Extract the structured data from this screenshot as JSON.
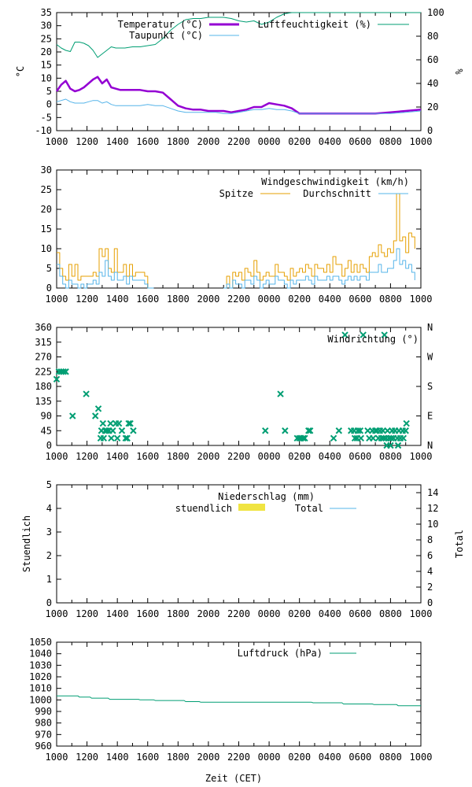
{
  "x_ticks": [
    "1000",
    "1200",
    "1400",
    "1600",
    "1800",
    "2000",
    "2200",
    "0000",
    "0200",
    "0400",
    "0600",
    "0800",
    "1000"
  ],
  "x_axis_label": "Zeit (CET)",
  "colors": {
    "temperature": "#9400d3",
    "dewpoint": "#56b4e9",
    "humidity": "#009e73",
    "gust": "#e69f00",
    "average": "#56b4e9",
    "direction": "#009e73",
    "rain_hourly": "#f0e442",
    "rain_total": "#56b4e9",
    "pressure": "#009e73"
  },
  "chart_data": [
    {
      "type": "line",
      "id": "temperature",
      "ylabel": "°C",
      "y2label": "%",
      "ylim": [
        -10,
        35
      ],
      "y2lim": [
        0,
        100
      ],
      "yticks": [
        "-10",
        "-5",
        "0",
        "5",
        "10",
        "15",
        "20",
        "25",
        "30",
        "35"
      ],
      "y2ticks": [
        "0",
        "20",
        "40",
        "60",
        "80",
        "100"
      ],
      "grid": false,
      "legend_position": "top-right",
      "x_hours": [
        0,
        0.3,
        0.6,
        0.9,
        1.2,
        1.5,
        1.8,
        2.1,
        2.4,
        2.7,
        3.0,
        3.3,
        3.6,
        3.9,
        4.2,
        4.5,
        5.0,
        5.5,
        6.0,
        6.5,
        7.0,
        7.5,
        8.0,
        8.5,
        9.0,
        9.5,
        10.0,
        10.5,
        11.0,
        11.5,
        12.0,
        12.5,
        13.0,
        13.5,
        14.0,
        14.5,
        15.0,
        15.5,
        16.0,
        17.0,
        18.0,
        19.0,
        20.0,
        21.0,
        22.0,
        23.0,
        24.0
      ],
      "series": [
        {
          "name": "Temperatur (°C)",
          "axis": "y1",
          "values": [
            5.0,
            7.5,
            9.0,
            6.0,
            5.0,
            5.5,
            6.5,
            8.0,
            9.5,
            10.5,
            8.0,
            9.5,
            6.5,
            6.0,
            5.5,
            5.5,
            5.5,
            5.5,
            5.0,
            5.0,
            4.5,
            2.0,
            -0.5,
            -1.5,
            -2.0,
            -2.0,
            -2.5,
            -2.5,
            -2.5,
            -3.0,
            -2.5,
            -2.0,
            -1.0,
            -1.0,
            0.5,
            0.0,
            -0.5,
            -1.5,
            -3.5,
            -3.5,
            -3.5,
            -3.5,
            -3.5,
            -3.5,
            -3.0,
            -2.5,
            -2.0
          ]
        },
        {
          "name": "Taupunkt (°C)",
          "axis": "y1",
          "values": [
            1.0,
            1.5,
            2.0,
            1.0,
            0.5,
            0.5,
            0.5,
            1.0,
            1.5,
            1.5,
            0.5,
            1.0,
            0.0,
            -0.5,
            -0.5,
            -0.5,
            -0.5,
            -0.5,
            0.0,
            -0.5,
            -0.5,
            -1.5,
            -2.5,
            -3.0,
            -3.0,
            -3.0,
            -3.0,
            -3.0,
            -3.5,
            -3.5,
            -3.0,
            -2.5,
            -2.0,
            -2.0,
            -1.5,
            -2.0,
            -2.0,
            -2.5,
            -3.5,
            -3.5,
            -3.5,
            -3.5,
            -3.5,
            -3.5,
            -3.5,
            -3.0,
            -2.5
          ]
        },
        {
          "name": "Luftfeuchtigkeit (%)",
          "axis": "y2",
          "values": [
            73,
            70,
            68,
            67,
            75,
            75,
            74,
            72,
            68,
            62,
            65,
            68,
            71,
            70,
            70,
            70,
            71,
            71,
            72,
            73,
            78,
            85,
            90,
            94,
            95,
            95,
            96,
            96,
            96,
            95,
            93,
            92,
            93,
            90,
            92,
            96,
            99,
            100,
            100,
            100,
            100,
            100,
            100,
            100,
            100,
            100,
            100
          ]
        }
      ]
    },
    {
      "type": "line",
      "id": "wind_speed",
      "title": "Windgeschwindigkeit (km/h)",
      "ylim": [
        0,
        30
      ],
      "yticks": [
        "0",
        "5",
        "10",
        "15",
        "20",
        "25",
        "30"
      ],
      "grid": false,
      "legend_position": "top-right",
      "x_hours": [
        0,
        0.2,
        0.4,
        0.6,
        0.8,
        1.0,
        1.2,
        1.4,
        1.6,
        1.8,
        2.0,
        2.2,
        2.4,
        2.6,
        2.8,
        3.0,
        3.2,
        3.4,
        3.6,
        3.8,
        4.0,
        4.2,
        4.4,
        4.6,
        4.8,
        5.0,
        5.2,
        5.4,
        5.6,
        5.8,
        6.0,
        6.2,
        6.4,
        11.0,
        11.2,
        11.4,
        11.6,
        11.8,
        12.0,
        12.2,
        12.4,
        12.6,
        12.8,
        13.0,
        13.2,
        13.4,
        13.6,
        13.8,
        14.0,
        14.2,
        14.4,
        14.6,
        14.8,
        15.0,
        15.2,
        15.4,
        15.6,
        15.8,
        16.0,
        16.2,
        16.4,
        16.6,
        16.8,
        17.0,
        17.2,
        17.4,
        17.6,
        17.8,
        18.0,
        18.2,
        18.4,
        18.6,
        18.8,
        19.0,
        19.2,
        19.4,
        19.6,
        19.8,
        20.0,
        20.2,
        20.4,
        20.6,
        20.8,
        21.0,
        21.2,
        21.4,
        21.6,
        21.8,
        22.0,
        22.2,
        22.4,
        22.6,
        22.8,
        23.0,
        23.2,
        23.4,
        23.6,
        23.8,
        24.0
      ],
      "series": [
        {
          "name": "Spitze",
          "values": [
            9,
            5,
            3,
            2,
            6,
            3,
            6,
            2,
            3,
            3,
            3,
            3,
            4,
            3,
            10,
            8,
            10,
            5,
            4,
            10,
            4,
            4,
            6,
            3,
            6,
            3,
            4,
            4,
            4,
            3,
            0,
            0,
            0,
            0,
            3,
            0,
            4,
            3,
            4,
            2,
            5,
            4,
            3,
            7,
            4,
            2,
            3,
            4,
            3,
            3,
            6,
            4,
            4,
            3,
            2,
            5,
            3,
            4,
            5,
            4,
            6,
            5,
            3,
            6,
            5,
            5,
            4,
            6,
            4,
            8,
            6,
            6,
            3,
            5,
            7,
            4,
            6,
            4,
            6,
            5,
            4,
            8,
            9,
            8,
            11,
            9,
            8,
            10,
            9,
            12,
            24,
            12,
            13,
            9,
            14,
            13,
            10
          ]
        },
        {
          "name": "Durchschnitt",
          "values": [
            6,
            3,
            1,
            0,
            2,
            1,
            1,
            0,
            1,
            0,
            1,
            1,
            2,
            1,
            4,
            3,
            7,
            3,
            2,
            4,
            2,
            2,
            3,
            1,
            3,
            2,
            2,
            2,
            2,
            1,
            0,
            0,
            0,
            0,
            1,
            0,
            2,
            1,
            1,
            0,
            2,
            2,
            1,
            3,
            2,
            0,
            1,
            2,
            1,
            1,
            3,
            2,
            2,
            1,
            0,
            2,
            1,
            2,
            2,
            2,
            3,
            2,
            1,
            3,
            2,
            2,
            2,
            3,
            2,
            3,
            3,
            2,
            1,
            2,
            3,
            2,
            3,
            2,
            3,
            3,
            2,
            4,
            4,
            4,
            6,
            4,
            4,
            5,
            5,
            7,
            10,
            6,
            7,
            5,
            6,
            4,
            2
          ]
        }
      ]
    },
    {
      "type": "scatter",
      "id": "wind_direction",
      "title": "Windrichtung (°)",
      "ylim": [
        0,
        360
      ],
      "yticks": [
        "0",
        "45",
        "90",
        "135",
        "180",
        "225",
        "270",
        "315",
        "360"
      ],
      "y2ticks": [
        "N",
        "E",
        "S",
        "W",
        "N"
      ],
      "grid": false,
      "legend_position": "top-right",
      "points": [
        [
          0.0,
          202
        ],
        [
          0.15,
          225
        ],
        [
          0.3,
          225
        ],
        [
          0.45,
          225
        ],
        [
          0.6,
          225
        ],
        [
          1.05,
          90
        ],
        [
          1.95,
          157
        ],
        [
          2.55,
          90
        ],
        [
          2.75,
          112
        ],
        [
          2.9,
          22
        ],
        [
          2.95,
          45
        ],
        [
          3.05,
          67
        ],
        [
          3.1,
          22
        ],
        [
          3.2,
          45
        ],
        [
          3.3,
          45
        ],
        [
          3.45,
          45
        ],
        [
          3.55,
          67
        ],
        [
          3.6,
          22
        ],
        [
          3.7,
          45
        ],
        [
          3.9,
          67
        ],
        [
          4.0,
          22
        ],
        [
          4.1,
          67
        ],
        [
          4.3,
          45
        ],
        [
          4.55,
          22
        ],
        [
          4.65,
          22
        ],
        [
          4.75,
          67
        ],
        [
          4.85,
          67
        ],
        [
          5.05,
          45
        ],
        [
          13.75,
          45
        ],
        [
          14.75,
          157
        ],
        [
          15.05,
          45
        ],
        [
          15.85,
          22
        ],
        [
          16.0,
          22
        ],
        [
          16.1,
          22
        ],
        [
          16.25,
          22
        ],
        [
          16.35,
          22
        ],
        [
          16.6,
          45
        ],
        [
          16.7,
          45
        ],
        [
          18.25,
          22
        ],
        [
          18.6,
          45
        ],
        [
          19.0,
          337
        ],
        [
          19.4,
          45
        ],
        [
          19.6,
          45
        ],
        [
          19.65,
          22
        ],
        [
          19.8,
          22
        ],
        [
          19.85,
          45
        ],
        [
          20.0,
          45
        ],
        [
          20.05,
          22
        ],
        [
          20.2,
          337
        ],
        [
          20.5,
          45
        ],
        [
          20.6,
          22
        ],
        [
          20.8,
          45
        ],
        [
          20.85,
          22
        ],
        [
          21.0,
          45
        ],
        [
          21.1,
          45
        ],
        [
          21.2,
          22
        ],
        [
          21.3,
          45
        ],
        [
          21.4,
          22
        ],
        [
          21.5,
          45
        ],
        [
          21.6,
          337
        ],
        [
          21.55,
          22
        ],
        [
          21.7,
          22
        ],
        [
          21.75,
          0
        ],
        [
          21.8,
          45
        ],
        [
          21.9,
          22
        ],
        [
          22.0,
          0
        ],
        [
          22.05,
          22
        ],
        [
          22.1,
          45
        ],
        [
          22.2,
          22
        ],
        [
          22.3,
          45
        ],
        [
          22.45,
          22
        ],
        [
          22.5,
          0
        ],
        [
          22.55,
          45
        ],
        [
          22.65,
          22
        ],
        [
          22.8,
          45
        ],
        [
          22.85,
          22
        ],
        [
          23.0,
          45
        ],
        [
          23.05,
          67
        ]
      ]
    },
    {
      "type": "bar",
      "id": "precipitation",
      "title": "Niederschlag (mm)",
      "ylabel": "Stuendlich",
      "y2label": "Total",
      "ylim": [
        0,
        5
      ],
      "y2lim": [
        0,
        15
      ],
      "yticks": [
        "0",
        "1",
        "2",
        "3",
        "4",
        "5"
      ],
      "y2ticks": [
        "0",
        "2",
        "4",
        "6",
        "8",
        "10",
        "12",
        "14"
      ],
      "grid": false,
      "legend_position": "top-right",
      "series": [
        {
          "name": "stuendlich",
          "values": []
        },
        {
          "name": "Total",
          "values": []
        }
      ]
    },
    {
      "type": "line",
      "id": "pressure",
      "ylim": [
        960,
        1050
      ],
      "yticks": [
        "960",
        "970",
        "980",
        "990",
        "1000",
        "1010",
        "1020",
        "1030",
        "1040",
        "1050"
      ],
      "grid": false,
      "legend_position": "top-right",
      "x_hours": [
        0,
        1.4,
        1.5,
        2.2,
        2.3,
        3.4,
        3.5,
        5.4,
        5.5,
        6.4,
        6.5,
        8.4,
        8.5,
        9.4,
        9.5,
        16.8,
        16.9,
        18.8,
        18.9,
        20.8,
        20.9,
        22.4,
        22.5,
        24.0
      ],
      "series": [
        {
          "name": "Luftdruck (hPa)",
          "values": [
            1003.5,
            1003.5,
            1002.5,
            1002.5,
            1001.5,
            1001.5,
            1000.5,
            1000.5,
            1000,
            1000,
            999.5,
            999.5,
            998.5,
            998.5,
            998,
            998,
            997.5,
            997.5,
            996.5,
            996.5,
            996,
            996,
            995,
            995
          ]
        }
      ]
    }
  ]
}
